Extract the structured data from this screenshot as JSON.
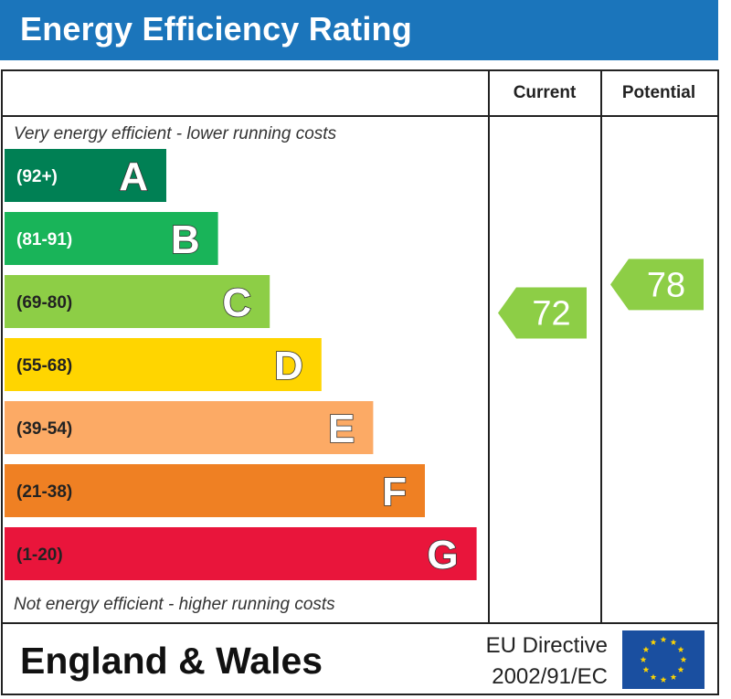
{
  "header": {
    "title": "Energy Efficiency Rating"
  },
  "columns": {
    "current_label": "Current",
    "potential_label": "Potential"
  },
  "notes": {
    "top": "Very energy efficient - lower running costs",
    "bottom": "Not energy efficient - higher running costs"
  },
  "footer": {
    "region": "England & Wales",
    "directive_line1": "EU Directive",
    "directive_line2": "2002/91/EC"
  },
  "chart_data": {
    "type": "bar",
    "title": "Energy Efficiency Rating",
    "bands": [
      {
        "letter": "A",
        "range": "(92+)",
        "min": 92,
        "max": 100,
        "color": "#008054",
        "range_color": "#ffffff"
      },
      {
        "letter": "B",
        "range": "(81-91)",
        "min": 81,
        "max": 91,
        "color": "#19b459",
        "range_color": "#ffffff"
      },
      {
        "letter": "C",
        "range": "(69-80)",
        "min": 69,
        "max": 80,
        "color": "#8dce46",
        "range_color": "#222222"
      },
      {
        "letter": "D",
        "range": "(55-68)",
        "min": 55,
        "max": 68,
        "color": "#ffd500",
        "range_color": "#222222"
      },
      {
        "letter": "E",
        "range": "(39-54)",
        "min": 39,
        "max": 54,
        "color": "#fcaa65",
        "range_color": "#222222"
      },
      {
        "letter": "F",
        "range": "(21-38)",
        "min": 21,
        "max": 38,
        "color": "#ef8023",
        "range_color": "#222222"
      },
      {
        "letter": "G",
        "range": "(1-20)",
        "min": 1,
        "max": 20,
        "color": "#e9153b",
        "range_color": "#222222"
      }
    ],
    "current": {
      "value": 72,
      "band": "C",
      "color": "#8dce46"
    },
    "potential": {
      "value": 78,
      "band": "C",
      "color": "#8dce46"
    }
  }
}
